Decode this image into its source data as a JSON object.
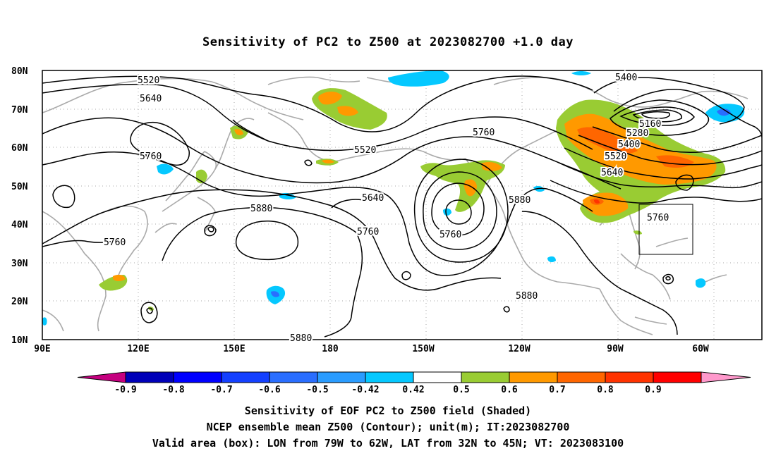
{
  "title": "Sensitivity of PC2 to Z500 at 2023082700 +1.0 day",
  "map": {
    "lat_labels": [
      "80N",
      "70N",
      "60N",
      "50N",
      "40N",
      "30N",
      "20N",
      "10N"
    ],
    "lon_labels": [
      "90E",
      "120E",
      "150E",
      "180",
      "150W",
      "120W",
      "90W",
      "60W"
    ],
    "contour_labels": [
      "5520",
      "5640",
      "5760",
      "5760",
      "5880",
      "5520",
      "5760",
      "5640",
      "5760",
      "5760",
      "5880",
      "5880",
      "5880",
      "5400",
      "5160",
      "5280",
      "5400",
      "5520",
      "5640",
      "5760"
    ],
    "valid_box": {
      "lon_from": "79W",
      "lon_to": "62W",
      "lat_from": "32N",
      "lat_to": "45N"
    }
  },
  "colorbar": {
    "labels": [
      "-0.9",
      "-0.8",
      "-0.7",
      "-0.6",
      "-0.5",
      "-0.42",
      "0.42",
      "0.5",
      "0.6",
      "0.7",
      "0.8",
      "0.9"
    ],
    "colors": [
      "#c5007f",
      "#0000b8",
      "#0000ff",
      "#1440ff",
      "#2a6eff",
      "#2a9cff",
      "#05c8ff",
      "#ffffff",
      "#99cc33",
      "#ff9900",
      "#ff6600",
      "#ff3300",
      "#ff0000",
      "#ff99cc"
    ]
  },
  "footer": {
    "line1": "Sensitivity of EOF PC2 to Z500 field (Shaded)",
    "line2": "NCEP ensemble mean Z500 (Contour); unit(m); IT:2023082700",
    "line3": "Valid area (box): LON from 79W to 62W, LAT from 32N to 45N; VT: 2023083100"
  }
}
